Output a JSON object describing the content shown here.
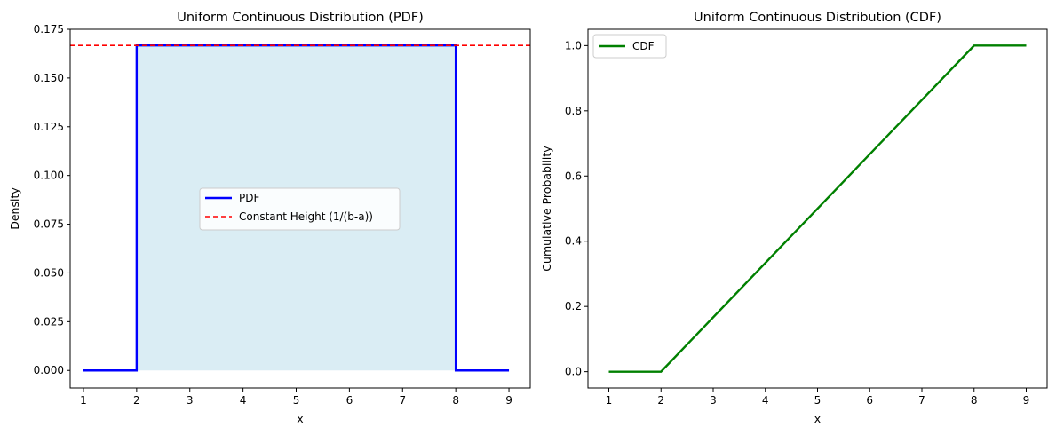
{
  "chart_data": [
    {
      "type": "line",
      "title": "Uniform Continuous Distribution (PDF)",
      "xlabel": "x",
      "ylabel": "Density",
      "xlim": [
        0.75,
        9.4
      ],
      "ylim": [
        -0.009,
        0.175
      ],
      "xticks": [
        1,
        2,
        3,
        4,
        5,
        6,
        7,
        8,
        9
      ],
      "yticks": [
        0.0,
        0.025,
        0.05,
        0.075,
        0.1,
        0.125,
        0.15,
        0.175
      ],
      "ytick_labels": [
        "0.000",
        "0.025",
        "0.050",
        "0.075",
        "0.100",
        "0.125",
        "0.150",
        "0.175"
      ],
      "grid": false,
      "legend_position": "center",
      "series": [
        {
          "name": "PDF",
          "color": "#0000ff",
          "style": "solid",
          "x": [
            1,
            2,
            2,
            8,
            8,
            9
          ],
          "y": [
            0,
            0,
            0.1667,
            0.1667,
            0,
            0
          ]
        },
        {
          "name": "Constant Height (1/(b-a))",
          "color": "#ff0000",
          "style": "dashed",
          "hline": 0.1667
        }
      ],
      "fill": {
        "x": [
          2,
          8
        ],
        "y": 0.1667,
        "color": "#add8e6",
        "opacity": 0.45
      }
    },
    {
      "type": "line",
      "title": "Uniform Continuous Distribution (CDF)",
      "xlabel": "x",
      "ylabel": "Cumulative Probability",
      "xlim": [
        0.6,
        9.4
      ],
      "ylim": [
        -0.05,
        1.05
      ],
      "xticks": [
        1,
        2,
        3,
        4,
        5,
        6,
        7,
        8,
        9
      ],
      "yticks": [
        0.0,
        0.2,
        0.4,
        0.6,
        0.8,
        1.0
      ],
      "ytick_labels": [
        "0.0",
        "0.2",
        "0.4",
        "0.6",
        "0.8",
        "1.0"
      ],
      "grid": false,
      "legend_position": "upper-left",
      "series": [
        {
          "name": "CDF",
          "color": "#008000",
          "style": "solid",
          "x": [
            1,
            2,
            8,
            9
          ],
          "y": [
            0,
            0,
            1,
            1
          ]
        }
      ]
    }
  ]
}
